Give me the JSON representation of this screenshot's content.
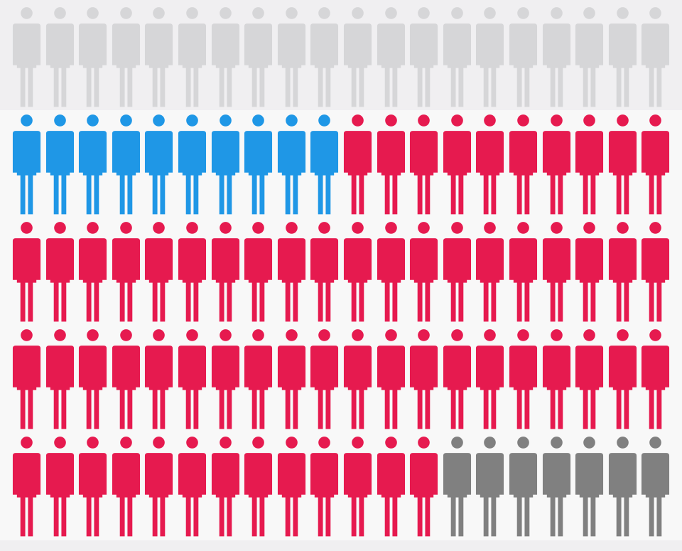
{
  "chart_data": {
    "type": "pictogram",
    "rows": 5,
    "icons_per_row": 20,
    "unit": "people",
    "series": [
      {
        "color": "#d6d6d8",
        "count": 20
      },
      {
        "color": "#1f97e6",
        "count": 10
      },
      {
        "color": "#e61a4f",
        "count": 63
      },
      {
        "color": "#808080",
        "count": 7
      }
    ],
    "grid": false,
    "legend": "none"
  },
  "colors": {
    "background": "#f0eff1",
    "row_band": "#f8f8f8"
  },
  "icon": "person-icon"
}
